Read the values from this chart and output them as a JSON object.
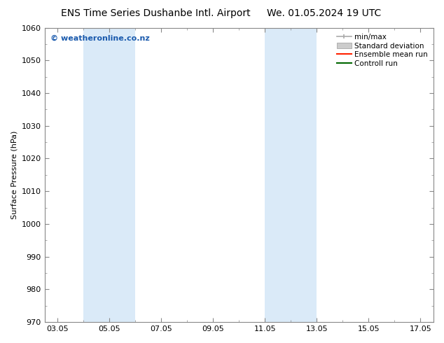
{
  "title_left": "ENS Time Series Dushanbe Intl. Airport",
  "title_right": "We. 01.05.2024 19 UTC",
  "ylabel": "Surface Pressure (hPa)",
  "ylim": [
    970,
    1060
  ],
  "yticks": [
    970,
    980,
    990,
    1000,
    1010,
    1020,
    1030,
    1040,
    1050,
    1060
  ],
  "xtick_labels": [
    "03.05",
    "05.05",
    "07.05",
    "09.05",
    "11.05",
    "13.05",
    "15.05",
    "17.05"
  ],
  "xtick_positions": [
    0,
    2,
    4,
    6,
    8,
    10,
    12,
    14
  ],
  "xlim": [
    -0.5,
    14.5
  ],
  "shaded_regions": [
    {
      "xstart": 1.0,
      "xend": 3.0,
      "color": "#daeaf8"
    },
    {
      "xstart": 8.0,
      "xend": 10.0,
      "color": "#daeaf8"
    }
  ],
  "watermark_text": "© weatheronline.co.nz",
  "watermark_color": "#1a5aad",
  "watermark_fontsize": 8,
  "legend_entries": [
    {
      "label": "min/max",
      "color": "#aaaaaa",
      "style": "minmax"
    },
    {
      "label": "Standard deviation",
      "color": "#cccccc",
      "style": "stddev"
    },
    {
      "label": "Ensemble mean run",
      "color": "#ff0000",
      "style": "line"
    },
    {
      "label": "Controll run",
      "color": "#006600",
      "style": "line"
    }
  ],
  "bg_color": "#ffffff",
  "spine_color": "#888888",
  "title_fontsize": 10,
  "axis_label_fontsize": 8,
  "tick_fontsize": 8,
  "legend_fontsize": 7.5
}
